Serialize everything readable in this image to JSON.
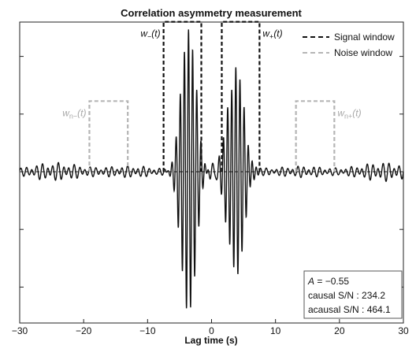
{
  "chart_data": {
    "type": "line",
    "title": "Correlation asymmetry measurement",
    "xlabel": "Lag time (s)",
    "ylabel": "",
    "xlim": [
      -30,
      30
    ],
    "ylim": [
      -1.1,
      1.1
    ],
    "x_ticks": [
      -30,
      -20,
      -10,
      0,
      10,
      20,
      30
    ],
    "x_tick_labels": [
      "−30",
      "−20",
      "−10",
      "0",
      "10",
      "20",
      "30"
    ],
    "grid": false,
    "legend_position": "top-right",
    "legend": [
      {
        "label": "Signal window",
        "color": "#111111",
        "style": "dashed"
      },
      {
        "label": "Noise window",
        "color": "#b5b5b5",
        "style": "dashed"
      }
    ],
    "series": [
      {
        "kind": "waveform",
        "color": "#111111",
        "packets": [
          {
            "center": -3.6,
            "amplitude": 1.0,
            "width": 1.6,
            "freq": 1.55
          },
          {
            "center": 3.8,
            "amplitude": 0.72,
            "width": 1.75,
            "freq": 1.55
          }
        ],
        "noise_level": 0.045,
        "range": [
          -30,
          30
        ]
      }
    ],
    "windows": [
      {
        "name": "Signal window",
        "label_main": "w",
        "label_sub": "−",
        "label_tail": "(t)",
        "x_start": -7.5,
        "x_end": -1.6,
        "height": 1.04,
        "color": "#111111",
        "label_side": "left"
      },
      {
        "name": "Signal window",
        "label_main": "w",
        "label_sub": "+",
        "label_tail": "(t)",
        "x_start": 1.6,
        "x_end": 7.5,
        "height": 1.04,
        "color": "#111111",
        "label_side": "right"
      },
      {
        "name": "Noise window",
        "label_main": "w",
        "label_sub": "n−",
        "label_tail": "(t)",
        "x_start": -19.1,
        "x_end": -13.1,
        "height": 0.49,
        "color": "#b5b5b5",
        "label_side": "left"
      },
      {
        "name": "Noise window",
        "label_main": "w",
        "label_sub": "n+",
        "label_tail": "(t)",
        "x_start": 13.2,
        "x_end": 19.2,
        "height": 0.49,
        "color": "#b5b5b5",
        "label_side": "right"
      }
    ],
    "annotation_box": {
      "asymmetry_label": "A",
      "asymmetry_value": " = −0.55",
      "causal": "causal S/N : 234.2",
      "acausal": "acausal S/N : 464.1"
    }
  }
}
